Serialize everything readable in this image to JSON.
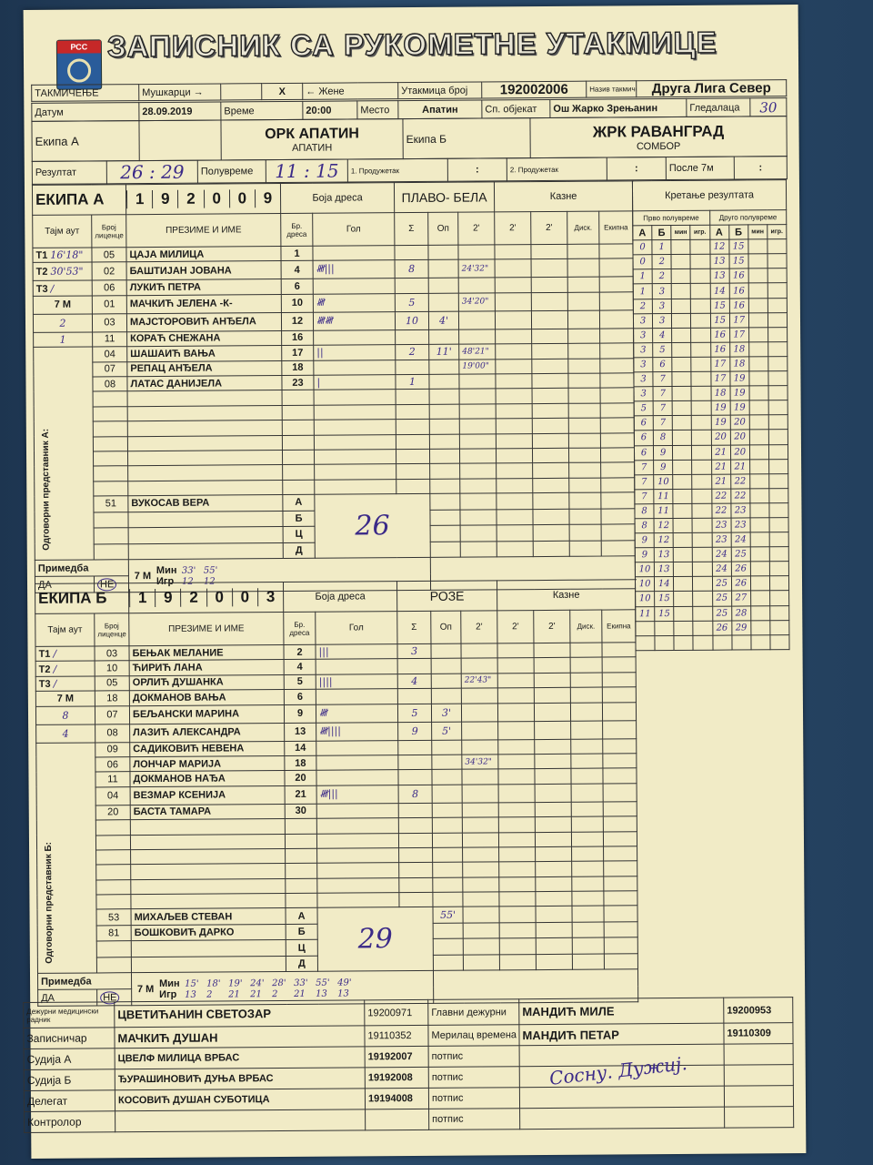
{
  "header": {
    "federation_logo_text": "РСС",
    "title": "ЗАПИСНИК СА РУКОМЕТНЕ УТАКМИЦЕ"
  },
  "match": {
    "competition_label": "ТАКМИЧЕЊЕ",
    "men_label": "Мушкарци →",
    "mark": "X",
    "women_label": "← Жене",
    "match_no_label": "Утакмица број",
    "match_no": "192002006",
    "comp_name_label": "Назив такмичења",
    "comp_name": "Друга Лига Север",
    "date_label": "Датум",
    "date": "28.09.2019",
    "time_label": "Време",
    "time": "20:00",
    "place_label": "Место",
    "place": "Апатин",
    "venue_label": "Сп. објекат",
    "venue": "Ош Жарко Зрењанин",
    "spectators_label": "Гледалаца",
    "spectators": "30",
    "team_a_label": "Екипа А",
    "team_a": "ОРК АПАТИН",
    "team_a_city": "АПАТИН",
    "team_b_label": "Екипа Б",
    "team_b": "ЖРК РАВАНГРАД",
    "team_b_city": "СОМБОР",
    "result_label": "Резултат",
    "result": "26 : 29",
    "halftime_label": "Полувреме",
    "halftime": "11 : 15",
    "ot1_label": "1. Продужетак",
    "ot1": ":",
    "ot2_label": "2. Продужетак",
    "ot2": ":",
    "after7m_label": "После 7м",
    "after7m": ":"
  },
  "columns": {
    "timeout": "Тајм аут",
    "license": "Број лиценце",
    "name": "ПРЕЗИМЕ И ИМЕ",
    "jersey": "Бр. дреса",
    "goal": "Гол",
    "sum": "Σ",
    "warning": "Оп",
    "p1": "2'",
    "p2": "2'",
    "p3": "2'",
    "disq": "Диск.",
    "team": "Екипна",
    "penalties": "Казне",
    "jersey_color": "Боја дреса",
    "progress": "Кретање резултата",
    "first_half": "Прво полувреме",
    "second_half": "Друго полувреме",
    "a": "А",
    "b": "Б",
    "min": "мин",
    "igr": "игр."
  },
  "team_a": {
    "label": "ЕКИПА А",
    "code": [
      "1",
      "9",
      "2",
      "0",
      "0",
      "9"
    ],
    "jersey_color": "ПЛАВО- БЕЛА",
    "timeouts": [
      {
        "label": "T1",
        "value": "16'18\""
      },
      {
        "label": "T2",
        "value": "30'53\""
      },
      {
        "label": "T3",
        "value": "/"
      }
    ],
    "seven_m_label": "7 М",
    "seven_m": [
      "2",
      "1"
    ],
    "players": [
      {
        "lic": "05",
        "name": "ЦАЈА МИЛИЦА",
        "no": "1",
        "goals": "",
        "sum": "",
        "op": "",
        "p1": ""
      },
      {
        "lic": "02",
        "name": "БАШТИЈАН ЈОВАНА",
        "no": "4",
        "goals": "𝍸|||",
        "sum": "8",
        "op": "",
        "p1": "24'32\""
      },
      {
        "lic": "06",
        "name": "ЛУКИЋ ПЕТРА",
        "no": "6",
        "goals": "",
        "sum": "",
        "op": "",
        "p1": ""
      },
      {
        "lic": "01",
        "name": "МАЧКИЋ ЈЕЛЕНА   -К-",
        "no": "10",
        "goals": "𝍸",
        "sum": "5",
        "op": "",
        "p1": "34'20\""
      },
      {
        "lic": "03",
        "name": "МАЈСТОРОВИЋ  АНЂЕЛА",
        "no": "12",
        "goals": "𝍸𝍸",
        "sum": "10",
        "op": "4'",
        "p1": ""
      },
      {
        "lic": "11",
        "name": "КОРАЋ СНЕЖАНА",
        "no": "16",
        "goals": "",
        "sum": "",
        "op": "",
        "p1": ""
      },
      {
        "lic": "04",
        "name": "ШАШАИЋ ВАЊА",
        "no": "17",
        "goals": "||",
        "sum": "2",
        "op": "11'",
        "p1": "48'21\""
      },
      {
        "lic": "07",
        "name": "РЕПАЦ АНЂЕЛА",
        "no": "18",
        "goals": "",
        "sum": "",
        "op": "",
        "p1": "19'00\""
      },
      {
        "lic": "08",
        "name": "ЛАТАС ДАНИЈЕЛА",
        "no": "23",
        "goals": "|",
        "sum": "1",
        "op": "",
        "p1": ""
      }
    ],
    "rep_label": "Одговорни представник А:",
    "officials": [
      {
        "lic": "51",
        "name": "ВУКОСАВ ВЕРА",
        "role": "А"
      },
      {
        "lic": "",
        "name": "",
        "role": "Б"
      },
      {
        "lic": "",
        "name": "",
        "role": "Ц"
      },
      {
        "lic": "",
        "name": "",
        "role": "Д"
      }
    ],
    "total": "26",
    "remark_label": "Примедба",
    "yes": "ДА",
    "no": "НЕ",
    "min_label": "Мин",
    "igr_label": "Игр",
    "seven_m_min": [
      "33'",
      "55'"
    ],
    "seven_m_igr": [
      "12",
      "12"
    ]
  },
  "team_b": {
    "label": "ЕКИПА Б",
    "code": [
      "1",
      "9",
      "2",
      "0",
      "0",
      "3"
    ],
    "jersey_color": "РОЗЕ",
    "timeouts": [
      {
        "label": "T1",
        "value": "/"
      },
      {
        "label": "T2",
        "value": "/"
      },
      {
        "label": "T3",
        "value": "/"
      }
    ],
    "seven_m_label": "7 М",
    "seven_m": [
      "8",
      "4"
    ],
    "players": [
      {
        "lic": "03",
        "name": "БЕЊАК МЕЛАНИЕ",
        "no": "2",
        "goals": "|||",
        "sum": "3",
        "op": "",
        "p1": ""
      },
      {
        "lic": "10",
        "name": "ЋИРИЋ ЛАНА",
        "no": "4",
        "goals": "",
        "sum": "",
        "op": "",
        "p1": ""
      },
      {
        "lic": "05",
        "name": "ОРЛИЋ ДУШАНКА",
        "no": "5",
        "goals": "||||",
        "sum": "4",
        "op": "",
        "p1": "22'43\""
      },
      {
        "lic": "18",
        "name": "ДОКМАНОВ ВАЊА",
        "no": "6",
        "goals": "",
        "sum": "",
        "op": "",
        "p1": ""
      },
      {
        "lic": "07",
        "name": "БЕЉАНСКИ МАРИНА",
        "no": "9",
        "goals": "𝍸",
        "sum": "5",
        "op": "3'",
        "p1": ""
      },
      {
        "lic": "08",
        "name": "ЛАЗИЋ АЛЕКСАНДРА",
        "no": "13",
        "goals": "𝍸||||",
        "sum": "9",
        "op": "5'",
        "p1": ""
      },
      {
        "lic": "09",
        "name": "САДИКОВИЋ НЕВЕНА",
        "no": "14",
        "goals": "",
        "sum": "",
        "op": "",
        "p1": ""
      },
      {
        "lic": "06",
        "name": "ЛОНЧАР МАРИЈА",
        "no": "18",
        "goals": "",
        "sum": "",
        "op": "",
        "p1": "34'32\""
      },
      {
        "lic": "11",
        "name": "ДОКМАНОВ НАЂА",
        "no": "20",
        "goals": "",
        "sum": "",
        "op": "",
        "p1": ""
      },
      {
        "lic": "04",
        "name": "ВЕЗМАР КСЕНИЈА",
        "no": "21",
        "goals": "𝍸|||",
        "sum": "8",
        "op": "",
        "p1": ""
      },
      {
        "lic": "20",
        "name": "БАСТА ТАМАРА",
        "no": "30",
        "goals": "",
        "sum": "",
        "op": "",
        "p1": ""
      }
    ],
    "rep_label": "Одговорни представник Б:",
    "officials": [
      {
        "lic": "53",
        "name": "МИХАЉЕВ СТЕВАН",
        "role": "А",
        "op": "55'"
      },
      {
        "lic": "81",
        "name": "БОШКОВИЋ ДАРКО",
        "role": "Б"
      },
      {
        "lic": "",
        "name": "",
        "role": "Ц"
      },
      {
        "lic": "",
        "name": "",
        "role": "Д"
      }
    ],
    "total": "29",
    "remark_label": "Примедба",
    "yes": "ДА",
    "no": "НЕ",
    "min_label": "Мин",
    "igr_label": "Игр",
    "seven_m_min": [
      "15'",
      "18'",
      "19'",
      "24'",
      "28'",
      "33'",
      "55'",
      "49'"
    ],
    "seven_m_igr": [
      "13",
      "2",
      "21",
      "21",
      "2",
      "21",
      "13",
      "13"
    ]
  },
  "score_progress": {
    "first_half": [
      [
        "0",
        "1"
      ],
      [
        "0",
        "2"
      ],
      [
        "1",
        "2"
      ],
      [
        "1",
        "3"
      ],
      [
        "2",
        "3"
      ],
      [
        "3",
        "3"
      ],
      [
        "3",
        "4"
      ],
      [
        "3",
        "5"
      ],
      [
        "3",
        "6"
      ],
      [
        "3",
        "7"
      ],
      [
        "3",
        "7"
      ],
      [
        "5",
        "7"
      ],
      [
        "6",
        "7"
      ],
      [
        "6",
        "8"
      ],
      [
        "6",
        "9"
      ],
      [
        "7",
        "9"
      ],
      [
        "7",
        "10"
      ],
      [
        "7",
        "11"
      ],
      [
        "8",
        "11"
      ],
      [
        "8",
        "12"
      ],
      [
        "9",
        "12"
      ],
      [
        "9",
        "13"
      ],
      [
        "10",
        "13"
      ],
      [
        "10",
        "14"
      ],
      [
        "10",
        "15"
      ],
      [
        "11",
        "15"
      ]
    ],
    "second_half": [
      [
        "12",
        "15"
      ],
      [
        "13",
        "15"
      ],
      [
        "13",
        "16"
      ],
      [
        "14",
        "16"
      ],
      [
        "15",
        "16"
      ],
      [
        "15",
        "17"
      ],
      [
        "16",
        "17"
      ],
      [
        "16",
        "18"
      ],
      [
        "17",
        "18"
      ],
      [
        "17",
        "19"
      ],
      [
        "18",
        "19"
      ],
      [
        "19",
        "19"
      ],
      [
        "19",
        "20"
      ],
      [
        "20",
        "20"
      ],
      [
        "21",
        "20"
      ],
      [
        "21",
        "21"
      ],
      [
        "21",
        "22"
      ],
      [
        "22",
        "22"
      ],
      [
        "22",
        "23"
      ],
      [
        "23",
        "23"
      ],
      [
        "23",
        "24"
      ],
      [
        "24",
        "25"
      ],
      [
        "24",
        "26"
      ],
      [
        "25",
        "26"
      ],
      [
        "25",
        "27"
      ],
      [
        "25",
        "28"
      ],
      [
        "26",
        "29"
      ]
    ],
    "final": "26 : 29"
  },
  "staff": [
    {
      "role": "Дежурни медицински радник",
      "name": "ЦВЕТИЋАНИН СВЕТОЗАР",
      "id": "19200971",
      "role2": "Главни дежурни",
      "name2": "МАНДИЋ МИЛЕ",
      "id2": "19200953"
    },
    {
      "role": "Записничар",
      "name": "МАЧКИЋ ДУШАН",
      "id": "19110352",
      "role2": "Мерилац времена",
      "name2": "МАНДИЋ ПЕТАР",
      "id2": "19110309"
    },
    {
      "role": "Судија А",
      "name": "ЦВЕЛФ МИЛИЦА    ВРБАС",
      "id": "19192007",
      "role2": "потпис",
      "name2": "",
      "id2": ""
    },
    {
      "role": "Судија Б",
      "name": "ЂУРАШИНОВИЋ ДУЊА ВРБАС",
      "id": "19192008",
      "role2": "потпис",
      "name2": "",
      "id2": ""
    },
    {
      "role": "Делегат",
      "name": "КОСОВИЋ ДУШАН  СУБОТИЦА",
      "id": "19194008",
      "role2": "потпис",
      "name2": "",
      "id2": ""
    },
    {
      "role": "Контролор",
      "name": "",
      "id": "",
      "role2": "потпис",
      "name2": "",
      "id2": ""
    }
  ]
}
